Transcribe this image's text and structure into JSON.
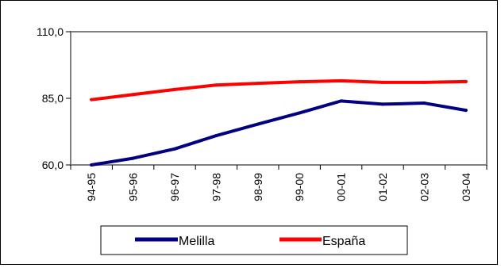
{
  "chart_data": {
    "type": "line",
    "categories": [
      "94-95",
      "95-96",
      "96-97",
      "97-98",
      "98-99",
      "99-00",
      "00-01",
      "01-02",
      "02-03",
      "03-04"
    ],
    "series": [
      {
        "name": "Melilla",
        "color": "#000080",
        "values": [
          60.0,
          62.5,
          66.0,
          71.0,
          75.3,
          79.5,
          84.0,
          82.8,
          83.2,
          80.5
        ]
      },
      {
        "name": "España",
        "color": "#ff0000",
        "values": [
          84.5,
          86.4,
          88.3,
          90.0,
          90.6,
          91.2,
          91.6,
          91.0,
          91.0,
          91.3
        ]
      }
    ],
    "ylim": [
      60,
      110
    ],
    "y_ticks": [
      "60,0",
      "85,0",
      "110,0"
    ],
    "y_tick_values": [
      60,
      85,
      110
    ],
    "grid": false,
    "legend_position": "bottom",
    "title": "",
    "xlabel": "",
    "ylabel": ""
  }
}
